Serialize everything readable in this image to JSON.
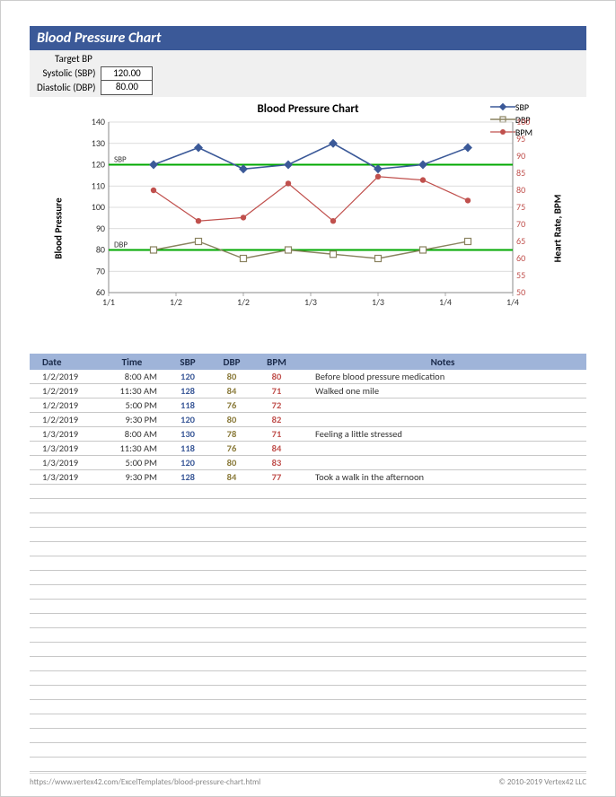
{
  "title": "Blood Pressure Chart",
  "target": {
    "header": "Target BP",
    "sbp_label": "Systolic (SBP)",
    "dbp_label": "Diastolic (DBP)",
    "sbp_value": "120.00",
    "dbp_value": "80.00"
  },
  "chart": {
    "title": "Blood Pressure Chart",
    "type": "line",
    "left_axis_label": "Blood Pressure",
    "right_axis_label": "Heart Rate, BPM",
    "x_labels": [
      "1/1",
      "1/2",
      "1/2",
      "1/3",
      "1/3",
      "1/4",
      "1/4"
    ],
    "left_ylim": [
      60,
      140
    ],
    "left_ytick_step": 10,
    "right_ylim": [
      50,
      100
    ],
    "right_ytick_step": 5,
    "sbp_target_line": 120,
    "dbp_target_line": 80,
    "series": {
      "sbp": {
        "label": "SBP",
        "color": "#3b5998",
        "marker": "diamond",
        "line_width": 1.6,
        "points": [
          [
            1,
            120
          ],
          [
            2,
            128
          ],
          [
            3,
            118
          ],
          [
            4,
            120
          ],
          [
            5,
            130
          ],
          [
            6,
            118
          ],
          [
            7,
            120
          ],
          [
            8,
            128
          ]
        ]
      },
      "dbp": {
        "label": "DBP",
        "color": "#8a8360",
        "marker": "square",
        "line_width": 1.4,
        "points": [
          [
            1,
            80
          ],
          [
            2,
            84
          ],
          [
            3,
            76
          ],
          [
            4,
            80
          ],
          [
            5,
            78
          ],
          [
            6,
            76
          ],
          [
            7,
            80
          ],
          [
            8,
            84
          ]
        ]
      },
      "bpm": {
        "label": "BPM",
        "color": "#c0504d",
        "marker": "circle",
        "line_width": 1.2,
        "points": [
          [
            1,
            80
          ],
          [
            2,
            71
          ],
          [
            3,
            72
          ],
          [
            4,
            82
          ],
          [
            5,
            71
          ],
          [
            6,
            84
          ],
          [
            7,
            83
          ],
          [
            8,
            77
          ]
        ]
      }
    },
    "target_color": "#00a800",
    "x_range": [
      0,
      9
    ],
    "grid_color": "#d0d0d0",
    "background_color": "#ffffff",
    "label_fontsize": 11,
    "tick_fontsize": 10,
    "data_point_count": 8
  },
  "table": {
    "columns": [
      "Date",
      "Time",
      "SBP",
      "DBP",
      "BPM",
      "Notes"
    ],
    "header_bg": "#9fb4d9",
    "sbp_color": "#3b5998",
    "dbp_color": "#8a7a3a",
    "bpm_color": "#c0504d",
    "row_border": "#c8c8c8",
    "rows": [
      {
        "date": "1/2/2019",
        "time": "8:00 AM",
        "sbp": "120",
        "dbp": "80",
        "bpm": "80",
        "notes": "Before blood pressure medication"
      },
      {
        "date": "1/2/2019",
        "time": "11:30 AM",
        "sbp": "128",
        "dbp": "84",
        "bpm": "71",
        "notes": "Walked one mile"
      },
      {
        "date": "1/2/2019",
        "time": "5:00 PM",
        "sbp": "118",
        "dbp": "76",
        "bpm": "72",
        "notes": ""
      },
      {
        "date": "1/2/2019",
        "time": "9:30 PM",
        "sbp": "120",
        "dbp": "80",
        "bpm": "82",
        "notes": ""
      },
      {
        "date": "1/3/2019",
        "time": "8:00 AM",
        "sbp": "130",
        "dbp": "78",
        "bpm": "71",
        "notes": "Feeling a little stressed"
      },
      {
        "date": "1/3/2019",
        "time": "11:30 AM",
        "sbp": "118",
        "dbp": "76",
        "bpm": "84",
        "notes": ""
      },
      {
        "date": "1/3/2019",
        "time": "5:00 PM",
        "sbp": "120",
        "dbp": "80",
        "bpm": "83",
        "notes": ""
      },
      {
        "date": "1/3/2019",
        "time": "9:30 PM",
        "sbp": "128",
        "dbp": "84",
        "bpm": "77",
        "notes": "Took a walk in the afternoon"
      }
    ],
    "empty_row_count": 20
  },
  "footer": {
    "url": "https://www.vertex42.com/ExcelTemplates/blood-pressure-chart.html",
    "copyright": "© 2010-2019 Vertex42 LLC"
  }
}
